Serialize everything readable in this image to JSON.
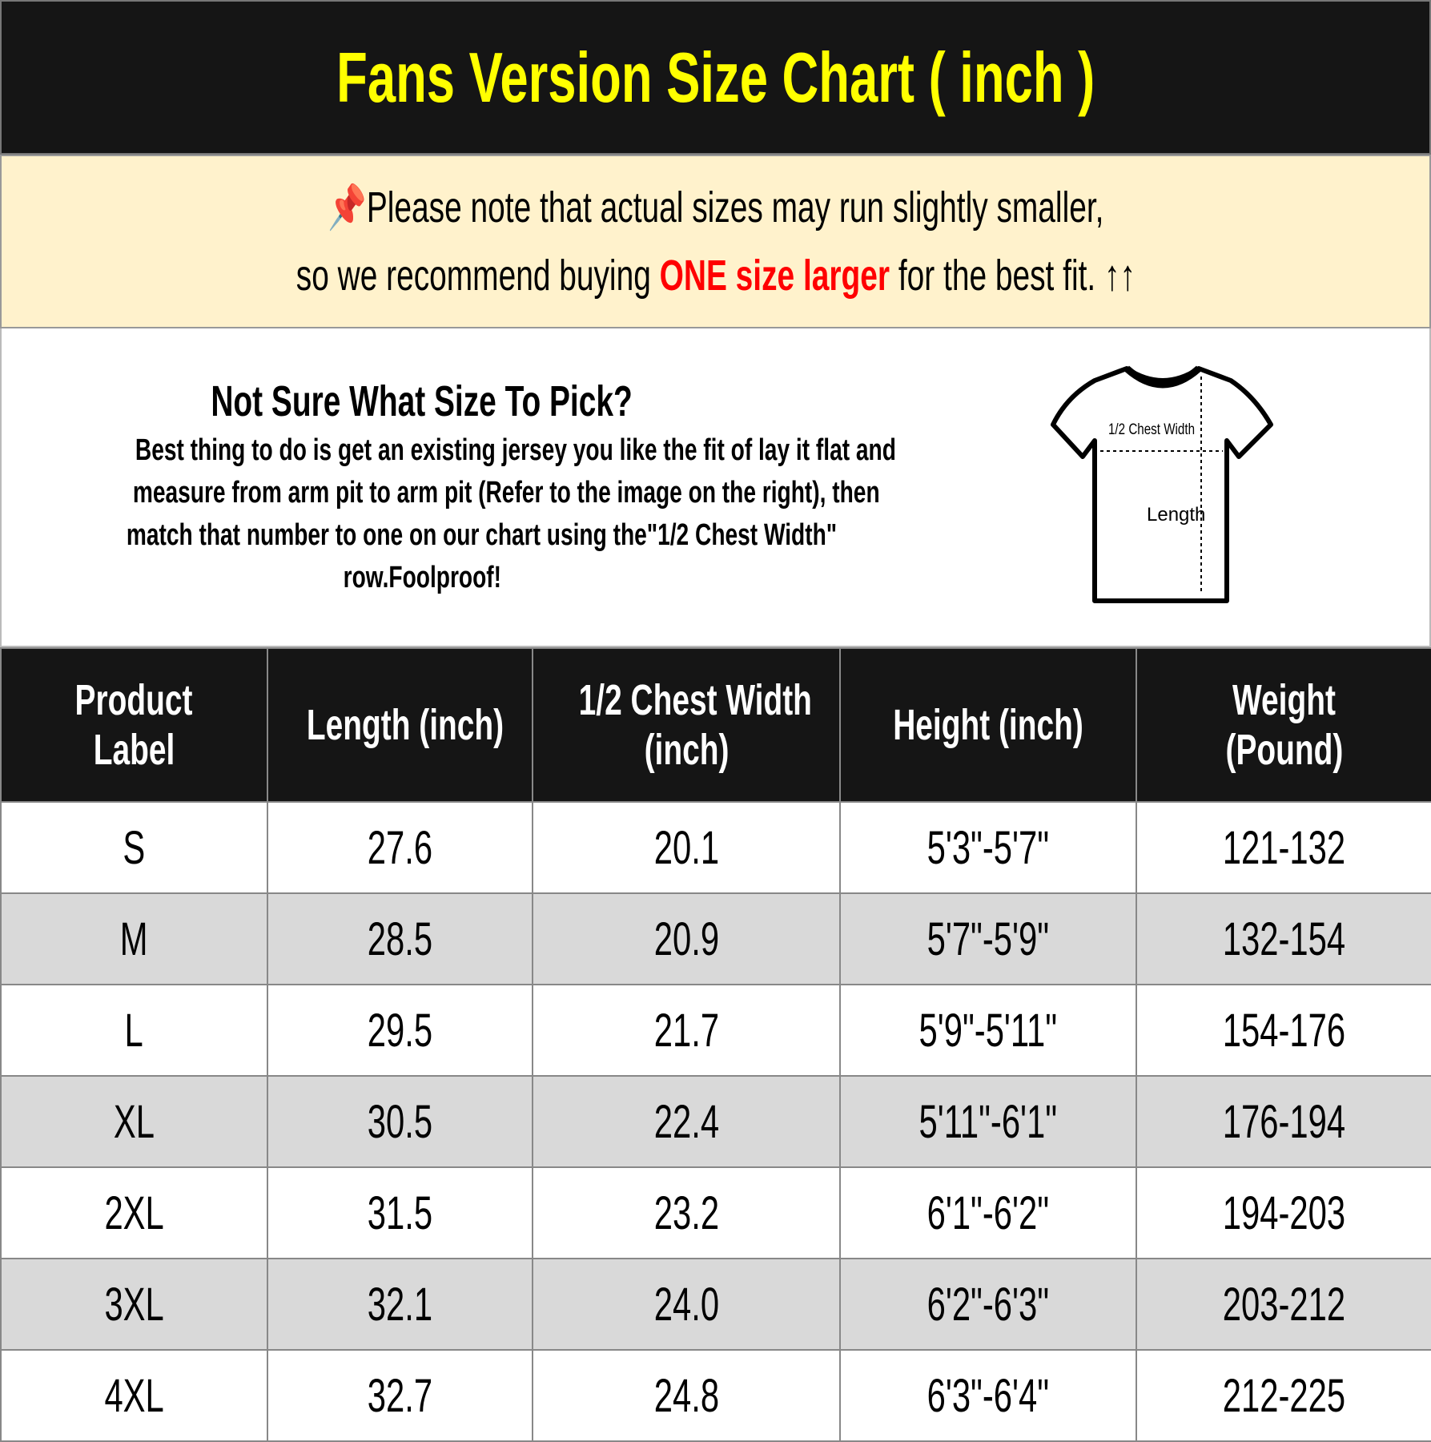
{
  "title": "Fans Version Size Chart ( inch )",
  "colors": {
    "title_bg": "#151515",
    "title_text": "#ffff00",
    "note_bg": "#fff2cc",
    "highlight": "#ff0000",
    "alt_row": "#d9d9d9"
  },
  "note": {
    "icon": "pushpin-icon",
    "line1": "Please note that actual sizes may run slightly smaller,",
    "line2_before": "so we recommend buying ",
    "line2_highlight": "ONE size larger",
    "line2_after": " for the best fit. ↑↑"
  },
  "info": {
    "heading": "Not Sure What Size To Pick?",
    "lines": [
      "Best thing to do is get an existing jersey you like the fit of lay it flat and",
      "measure from arm pit to arm pit (Refer to the image on the right), then",
      "match that number to one on our chart using the\"1/2 Chest Width\"",
      "row.Foolproof!"
    ],
    "diagram": {
      "chest_label": "1/2 Chest Width",
      "length_label": "Length"
    }
  },
  "table": {
    "headers": [
      [
        "Product",
        "Label"
      ],
      [
        "Length (inch)"
      ],
      [
        "1/2 Chest Width",
        "(inch)"
      ],
      [
        "Height (inch)"
      ],
      [
        "Weight",
        "(Pound)"
      ]
    ],
    "rows": [
      [
        "S",
        "27.6",
        "20.1",
        "5'3\"-5'7\"",
        "121-132"
      ],
      [
        "M",
        "28.5",
        "20.9",
        "5'7\"-5'9\"",
        "132-154"
      ],
      [
        "L",
        "29.5",
        "21.7",
        "5'9\"-5'11\"",
        "154-176"
      ],
      [
        "XL",
        "30.5",
        "22.4",
        "5'11\"-6'1\"",
        "176-194"
      ],
      [
        "2XL",
        "31.5",
        "23.2",
        "6'1\"-6'2\"",
        "194-203"
      ],
      [
        "3XL",
        "32.1",
        "24.0",
        "6'2\"-6'3\"",
        "203-212"
      ],
      [
        "4XL",
        "32.7",
        "24.8",
        "6'3\"-6'4\"",
        "212-225"
      ]
    ]
  }
}
